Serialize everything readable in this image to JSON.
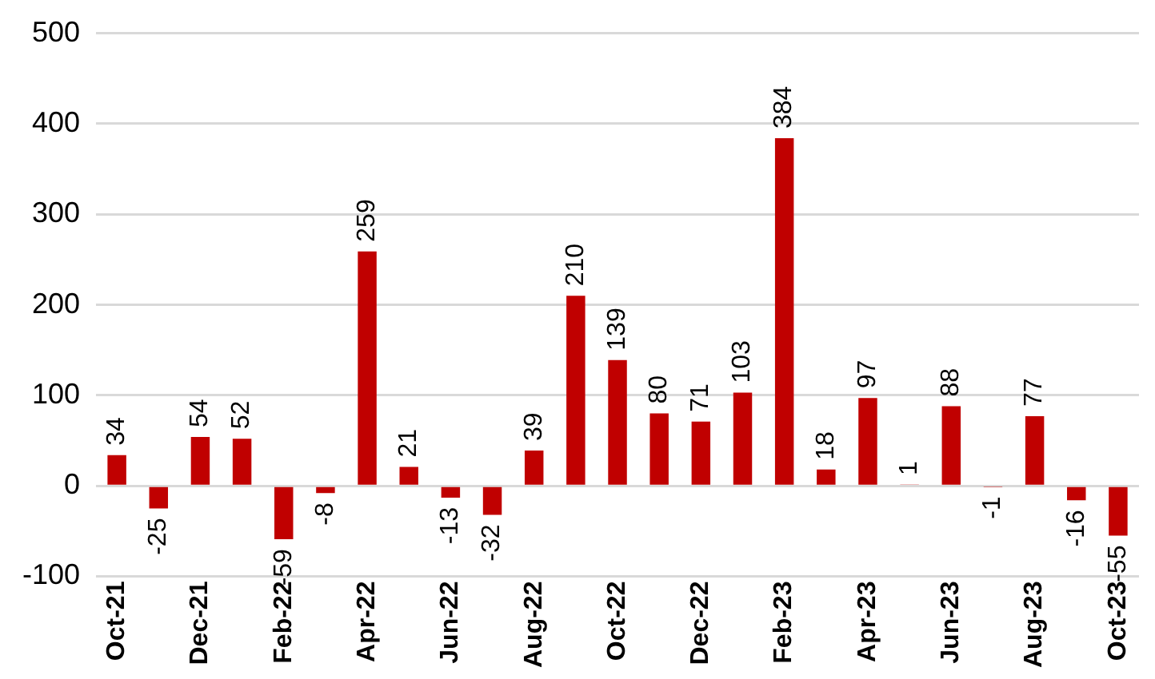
{
  "chart_data": {
    "type": "bar",
    "categories": [
      "Oct-21",
      null,
      "Dec-21",
      null,
      "Feb-22",
      null,
      "Apr-22",
      null,
      "Jun-22",
      null,
      "Aug-22",
      null,
      "Oct-22",
      null,
      "Dec-22",
      null,
      "Feb-23",
      null,
      "Apr-23",
      null,
      "Jun-23",
      null,
      "Aug-23",
      null,
      "Oct-23"
    ],
    "values": [
      34,
      -25,
      54,
      52,
      -59,
      -8,
      259,
      21,
      -13,
      -32,
      39,
      210,
      139,
      80,
      71,
      103,
      384,
      18,
      97,
      1,
      88,
      -1,
      77,
      -16,
      -55
    ],
    "color": "#c00000",
    "ylim": [
      -100,
      500
    ],
    "yticks": [
      -100,
      0,
      100,
      200,
      300,
      400,
      500
    ],
    "grid": "y",
    "data_labels": true
  }
}
